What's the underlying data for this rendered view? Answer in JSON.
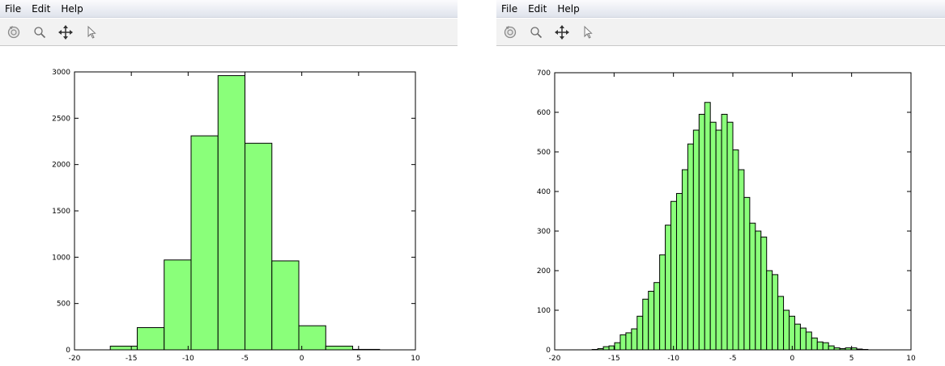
{
  "menu": [
    "File",
    "Edit",
    "Help"
  ],
  "toolbar": [
    {
      "name": "rotate-icon"
    },
    {
      "name": "zoom-icon"
    },
    {
      "name": "pan-icon"
    },
    {
      "name": "pointer-icon"
    }
  ],
  "colors": {
    "bar_fill": "#8aff7a",
    "bar_edge": "#000000"
  },
  "chart_data": [
    {
      "type": "bar",
      "title": "",
      "xlabel": "",
      "ylabel": "",
      "xlim": [
        -20,
        10
      ],
      "ylim": [
        0,
        3000
      ],
      "xticks": [
        -20,
        -15,
        -10,
        -5,
        0,
        5,
        10
      ],
      "yticks": [
        0,
        500,
        1000,
        1500,
        2000,
        2500,
        3000
      ],
      "bin_width": 2.37,
      "bin_starts": [
        -16.85,
        -14.48,
        -12.11,
        -9.74,
        -7.37,
        -5.0,
        -2.63,
        -0.26,
        2.11,
        4.48
      ],
      "values": [
        40,
        240,
        970,
        2310,
        2960,
        2230,
        960,
        260,
        40,
        5
      ]
    },
    {
      "type": "bar",
      "title": "",
      "xlabel": "",
      "ylabel": "",
      "xlim": [
        -20,
        10
      ],
      "ylim": [
        0,
        700
      ],
      "xticks": [
        -20,
        -15,
        -10,
        -5,
        0,
        5,
        10
      ],
      "yticks": [
        0,
        100,
        200,
        300,
        400,
        500,
        600,
        700
      ],
      "bin_width": 0.474,
      "bin_start": -16.85,
      "values": [
        1,
        3,
        8,
        10,
        18,
        38,
        43,
        53,
        85,
        128,
        148,
        170,
        240,
        315,
        375,
        395,
        455,
        520,
        555,
        595,
        625,
        575,
        555,
        595,
        575,
        505,
        455,
        385,
        320,
        300,
        285,
        200,
        190,
        135,
        100,
        85,
        65,
        55,
        45,
        30,
        20,
        18,
        10,
        5,
        3,
        5,
        5,
        2,
        1
      ]
    }
  ]
}
